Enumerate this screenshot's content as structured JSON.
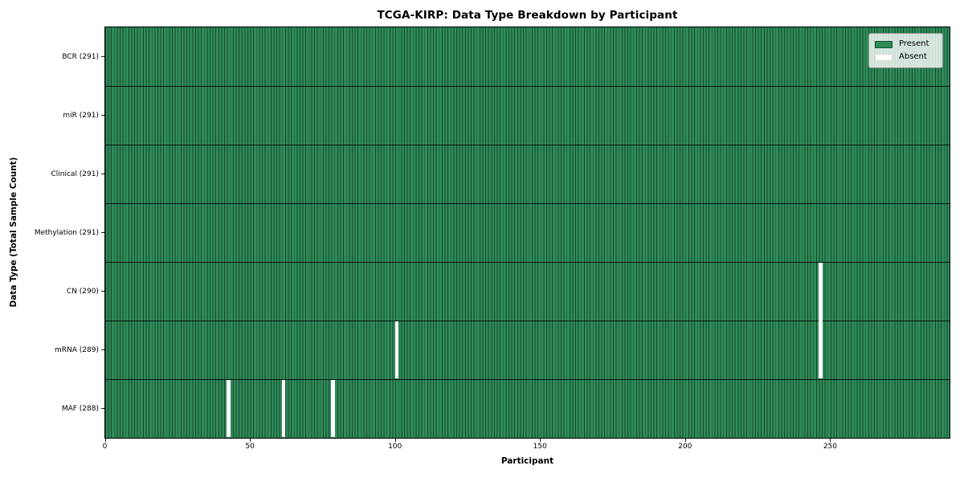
{
  "figure_title": "TCGA-KIRP: Data Type Breakdown by Participant",
  "chart_data": {
    "type": "heatmap",
    "title": "TCGA-KIRP: Data Type Breakdown by Participant",
    "xlabel": "Participant",
    "ylabel": "Data Type (Total Sample Count)",
    "x_ticks": [
      0,
      50,
      100,
      150,
      200,
      250
    ],
    "x_tick_labels": [
      "0",
      "50",
      "100",
      "150",
      "200",
      "250"
    ],
    "x_range": [
      0,
      291
    ],
    "n_participants": 291,
    "grid": false,
    "legend_position": "upper right",
    "rows": [
      {
        "label": "BCR (291)",
        "data_type": "BCR",
        "total_sample_count": 291,
        "absent_participants": []
      },
      {
        "label": "miR (291)",
        "data_type": "miR",
        "total_sample_count": 291,
        "absent_participants": []
      },
      {
        "label": "Clinical (291)",
        "data_type": "Clinical",
        "total_sample_count": 291,
        "absent_participants": []
      },
      {
        "label": "Methylation (291)",
        "data_type": "Methylation",
        "total_sample_count": 291,
        "absent_participants": []
      },
      {
        "label": "CN (290)",
        "data_type": "CN",
        "total_sample_count": 290,
        "absent_participants": [
          246
        ]
      },
      {
        "label": "mRNA (289)",
        "data_type": "mRNA",
        "total_sample_count": 289,
        "absent_participants": [
          100,
          246
        ]
      },
      {
        "label": "MAF (288)",
        "data_type": "MAF",
        "total_sample_count": 288,
        "absent_participants": [
          42,
          61,
          78
        ]
      }
    ],
    "legend": [
      {
        "label": "Present",
        "color": "#2e8b57"
      },
      {
        "label": "Absent",
        "color": "#ffffff"
      }
    ],
    "colors": {
      "present": "#2e8b57",
      "absent": "#ffffff",
      "bar_edge": "#16482e",
      "row_separator": "#000000",
      "plot_border": "#000000"
    }
  }
}
